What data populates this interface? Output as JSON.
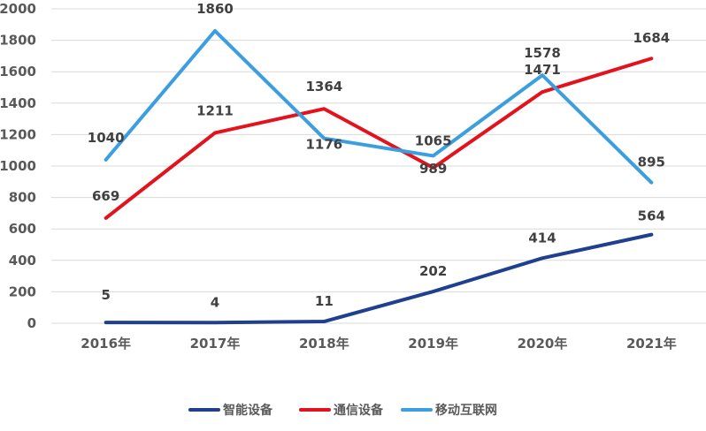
{
  "chart_data": {
    "type": "line",
    "categories": [
      "2016年",
      "2017年",
      "2018年",
      "2019年",
      "2020年",
      "2021年"
    ],
    "ylim": [
      0,
      2000
    ],
    "yticks": [
      0,
      200,
      400,
      600,
      800,
      1000,
      1200,
      1400,
      1600,
      1800,
      2000
    ],
    "grid": true,
    "legend": "bottom-center",
    "series": [
      {
        "name": "智能设备",
        "color": "#1f3f8f",
        "values": [
          5,
          4,
          11,
          202,
          414,
          564
        ]
      },
      {
        "name": "通信设备",
        "color": "#e2131c",
        "values": [
          669,
          1211,
          1364,
          989,
          1471,
          1684
        ]
      },
      {
        "name": "移动互联网",
        "color": "#3b9ee0",
        "values": [
          1040,
          1860,
          1176,
          1065,
          1578,
          895
        ]
      }
    ]
  }
}
